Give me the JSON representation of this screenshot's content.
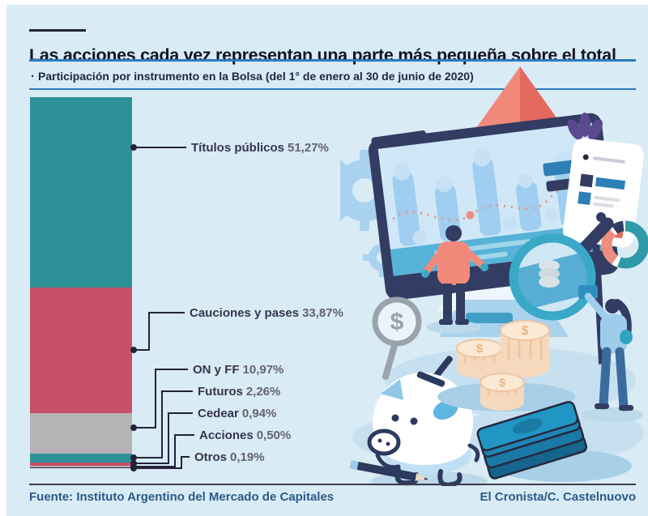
{
  "header": {
    "title": "Las acciones cada vez representan una parte más pequeña sobre el total",
    "subtitle_bullet": "·",
    "subtitle": "Participación por instrumento en la Bolsa (del 1° de enero al 30 de junio de 2020)"
  },
  "chart_data": {
    "type": "bar",
    "variant": "single-stacked-vertical-bar",
    "title": "Participación por instrumento en la Bolsa (del 1° de enero al 30 de junio de 2020)",
    "unit": "%",
    "total": 100,
    "legend_position": "right-leader-lines",
    "segments": [
      {
        "label": "Títulos públicos",
        "value": 51.27,
        "display": "51,27%",
        "color": "#2d9198"
      },
      {
        "label": "Cauciones y pases",
        "value": 33.87,
        "display": "33,87%",
        "color": "#c8506a"
      },
      {
        "label": "ON y FF",
        "value": 10.97,
        "display": "10,97%",
        "color": "#b6b3b7"
      },
      {
        "label": "Futuros",
        "value": 2.26,
        "display": "2,26%",
        "color": "#2d9198"
      },
      {
        "label": "Cedear",
        "value": 0.94,
        "display": "0,94%",
        "color": "#c8506a"
      },
      {
        "label": "Acciones",
        "value": 0.5,
        "display": "0,50%",
        "color": "#b6b3b7"
      },
      {
        "label": "Otros",
        "value": 0.19,
        "display": "0,19%",
        "color": "#27273d"
      }
    ]
  },
  "footer": {
    "source": "Fuente: Instituto Argentino del Mercado de Capitales",
    "credit": "El Cronista/C. Castelnuovo"
  },
  "icons": {
    "dollar_sign": "$"
  },
  "colors": {
    "panel_bg": "#d9ebf5",
    "rule_blue": "#2c7cc0",
    "ink": "#23233a",
    "label_name": "#35354e",
    "label_value": "#63636e",
    "footer_text": "#2b5a87",
    "footer_rule": "#3c3c49",
    "teal": "#2d9198",
    "crimson": "#c8506a",
    "gray": "#b6b3b7",
    "salmon": "#f1897a",
    "navy": "#333c63",
    "light_blue": "#9fcef0"
  }
}
